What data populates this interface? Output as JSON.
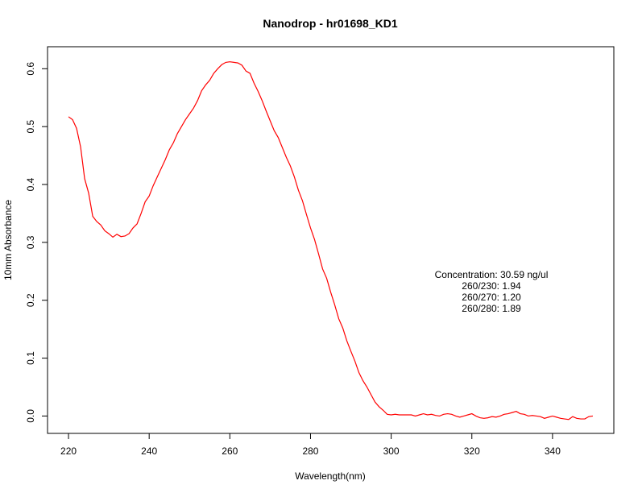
{
  "chart_data": {
    "type": "line",
    "title": "Nanodrop - hr01698_KD1",
    "x_label": "Wavelength(nm)",
    "y_label": "10mm Absorbance",
    "annotations": [
      "Concentration: 30.59 ng/ul",
      "260/230: 1.94",
      "260/270: 1.20",
      "260/280: 1.89"
    ],
    "xlim": [
      214.8,
      355.2
    ],
    "ylim": [
      -0.03,
      0.638
    ],
    "xticks": [
      220,
      240,
      260,
      280,
      300,
      320,
      340
    ],
    "yticks": [
      {
        "value": 0,
        "label": "0.0"
      },
      0.1,
      0.2,
      0.3,
      0.4,
      0.5,
      0.6
    ],
    "x": [
      220,
      221,
      222,
      223,
      224,
      225,
      226,
      227,
      228,
      229,
      230,
      231,
      232,
      233,
      234,
      235,
      236,
      237,
      238,
      239,
      240,
      241,
      242,
      243,
      244,
      245,
      246,
      247,
      248,
      249,
      250,
      251,
      252,
      253,
      254,
      255,
      256,
      257,
      258,
      259,
      260,
      261,
      262,
      263,
      264,
      265,
      266,
      267,
      268,
      269,
      270,
      271,
      272,
      273,
      274,
      275,
      276,
      277,
      278,
      279,
      280,
      281,
      282,
      283,
      284,
      285,
      286,
      287,
      288,
      289,
      290,
      291,
      292,
      293,
      294,
      295,
      296,
      297,
      298,
      299,
      300,
      301,
      302,
      303,
      304,
      305,
      306,
      307,
      308,
      309,
      310,
      311,
      312,
      313,
      314,
      315,
      316,
      317,
      318,
      319,
      320,
      321,
      322,
      323,
      324,
      325,
      326,
      327,
      328,
      329,
      330,
      331,
      332,
      333,
      334,
      335,
      336,
      337,
      338,
      339,
      340,
      341,
      342,
      343,
      344,
      345,
      346,
      347,
      348,
      349,
      350
    ],
    "series": [
      {
        "name": "Absorbance",
        "color": "#ff0000",
        "values": [
          0.517,
          0.512,
          0.497,
          0.465,
          0.41,
          0.385,
          0.345,
          0.336,
          0.33,
          0.32,
          0.315,
          0.309,
          0.314,
          0.31,
          0.311,
          0.315,
          0.325,
          0.332,
          0.35,
          0.37,
          0.38,
          0.398,
          0.413,
          0.428,
          0.443,
          0.46,
          0.472,
          0.488,
          0.5,
          0.512,
          0.522,
          0.532,
          0.545,
          0.562,
          0.572,
          0.58,
          0.592,
          0.6,
          0.607,
          0.611,
          0.612,
          0.611,
          0.61,
          0.606,
          0.596,
          0.592,
          0.575,
          0.561,
          0.545,
          0.527,
          0.51,
          0.493,
          0.481,
          0.464,
          0.447,
          0.432,
          0.413,
          0.39,
          0.372,
          0.348,
          0.325,
          0.305,
          0.28,
          0.254,
          0.238,
          0.214,
          0.192,
          0.168,
          0.152,
          0.13,
          0.112,
          0.095,
          0.075,
          0.061,
          0.05,
          0.037,
          0.024,
          0.016,
          0.01,
          0.003,
          0.002,
          0.003,
          0.002,
          0.002,
          0.002,
          0.002,
          0.0,
          0.002,
          0.004,
          0.002,
          0.003,
          0.001,
          0.0,
          0.003,
          0.004,
          0.003,
          0.0,
          -0.002,
          0.0,
          0.002,
          0.004,
          0.0,
          -0.003,
          -0.004,
          -0.003,
          -0.001,
          -0.002,
          0.0,
          0.003,
          0.004,
          0.006,
          0.008,
          0.004,
          0.003,
          0.0,
          0.001,
          0.0,
          -0.001,
          -0.004,
          -0.002,
          0.0,
          -0.002,
          -0.004,
          -0.005,
          -0.006,
          -0.001,
          -0.004,
          -0.005,
          -0.005,
          -0.001,
          0.0
        ]
      }
    ]
  }
}
